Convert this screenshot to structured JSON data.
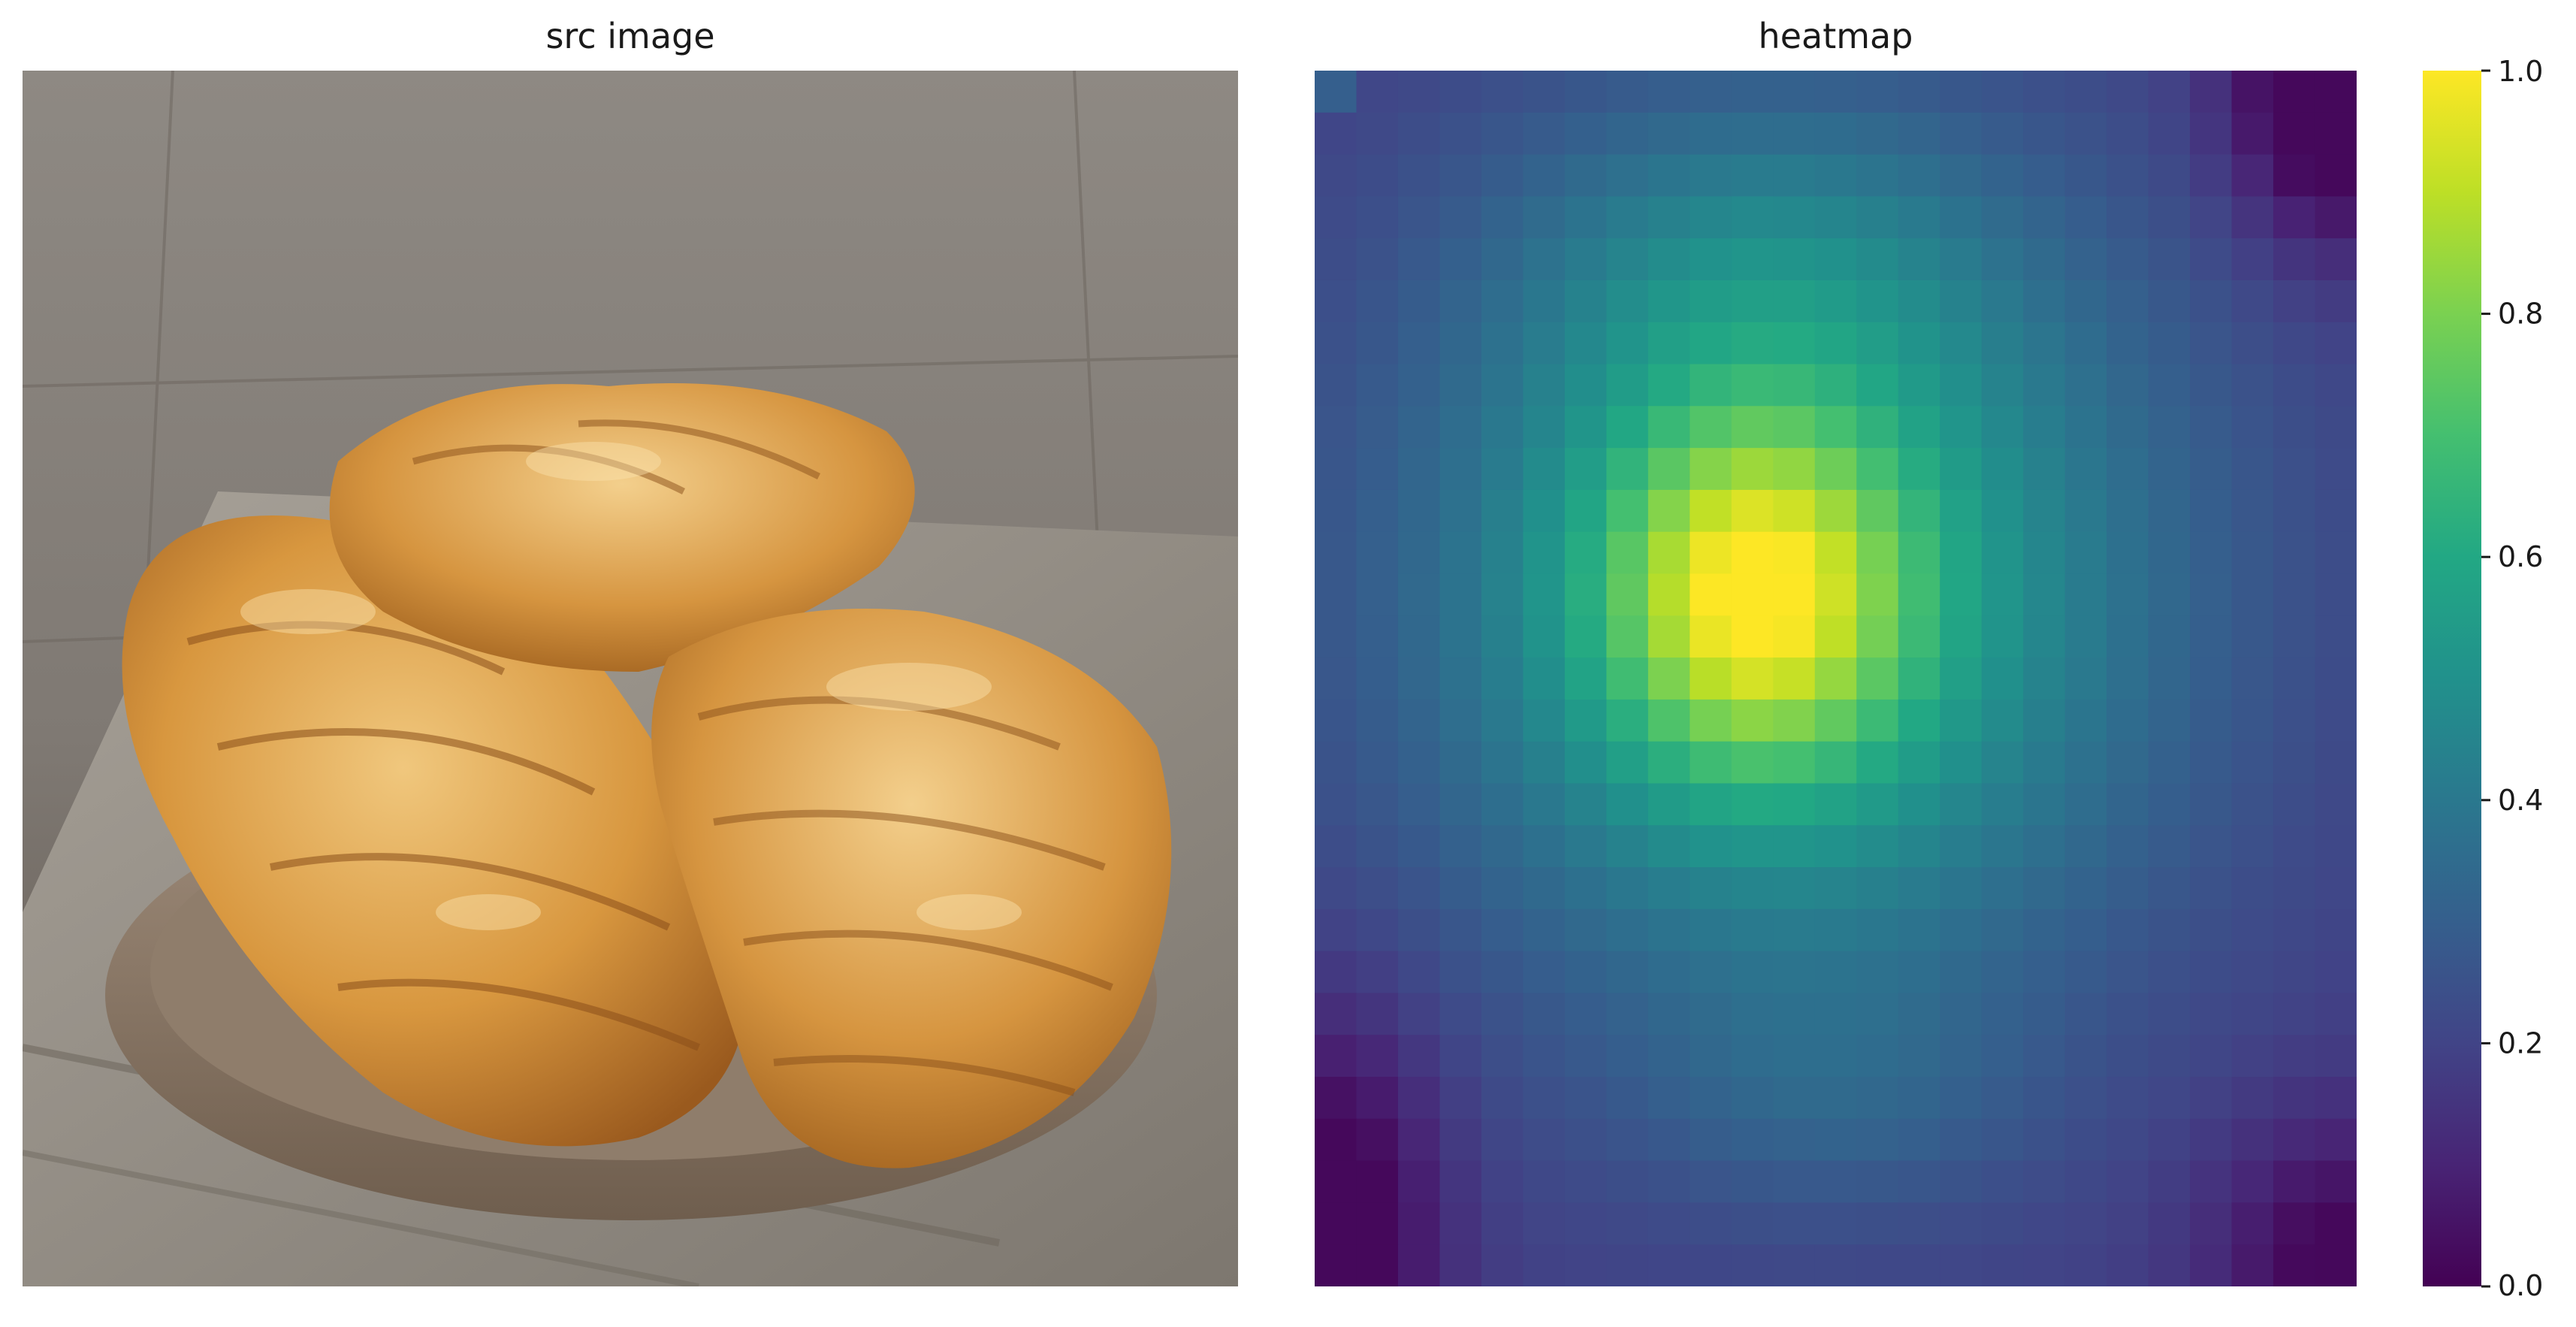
{
  "panels": {
    "src_title": "src image",
    "heatmap_title": "heatmap"
  },
  "chart_data": {
    "type": "heatmap",
    "title": "heatmap",
    "rows": 29,
    "cols": 25,
    "colormap": "viridis",
    "vmin": 0.0,
    "vmax": 1.0,
    "colorbar_ticks": [
      "0.0",
      "0.2",
      "0.4",
      "0.6",
      "0.8",
      "1.0"
    ],
    "axes_visible": false,
    "grid": false,
    "colorbar_placement": "right",
    "colormap_stops": [
      "#440154",
      "#482475",
      "#414487",
      "#355f8d",
      "#2a788e",
      "#21918c",
      "#22a884",
      "#44bf70",
      "#7ad151",
      "#bddf26",
      "#fde725"
    ],
    "approx_field": {
      "description_of_shape": "central peak near row 12, col 10; low corners",
      "peak_value": 1.0,
      "top_right_corner": 0.05,
      "bottom_left_corner": 0.08,
      "top_left_cell": 0.3
    }
  },
  "source_image": {
    "subject": "croissants on a plate",
    "colors": {
      "background": "#8a8580",
      "table": "#6e655c",
      "cloth": "#9b958c",
      "plate": "#8d7a68",
      "pastry_light": "#e7b56a",
      "pastry_mid": "#c98a3a",
      "pastry_dark": "#9a5a1e"
    }
  }
}
